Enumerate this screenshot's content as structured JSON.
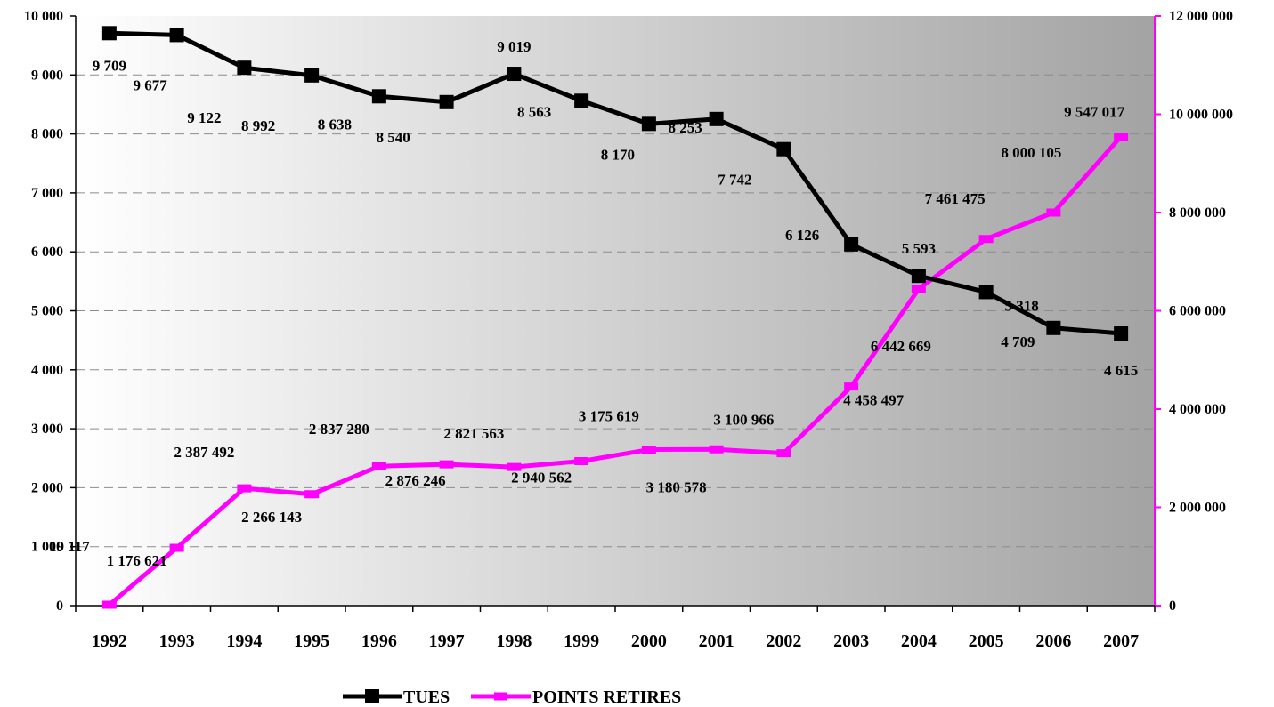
{
  "chart_data": {
    "type": "line",
    "categories": [
      "1992",
      "1993",
      "1994",
      "1995",
      "1996",
      "1997",
      "1998",
      "1999",
      "2000",
      "2001",
      "2002",
      "2003",
      "2004",
      "2005",
      "2006",
      "2007"
    ],
    "series": [
      {
        "name": "TUES",
        "axis": "left",
        "color": "#000000",
        "marker": "square",
        "values": [
          9709,
          9677,
          9122,
          8992,
          8638,
          8540,
          9019,
          8563,
          8170,
          8253,
          7742,
          6126,
          5593,
          5318,
          4709,
          4615
        ],
        "labels": [
          "9 709",
          "9 677",
          "9 122",
          "8 992",
          "8 638",
          "8 540",
          "9 019",
          "8 563",
          "8 170",
          "8 253",
          "7 742",
          "6 126",
          "5 593",
          "5 318",
          "4 709",
          "4 615"
        ]
      },
      {
        "name": "POINTS RETIRES",
        "axis": "right",
        "color": "#ff00ff",
        "marker": "dash",
        "values": [
          19117,
          1176621,
          2387492,
          2266143,
          2837280,
          2876246,
          2821563,
          2940562,
          3175619,
          3180578,
          3100966,
          4458497,
          6442669,
          7461475,
          8000105,
          9547017
        ],
        "labels": [
          "19 117",
          "1 176 621",
          "2 387 492",
          "2 266 143",
          "2 837 280",
          "2 876 246",
          "2 821 563",
          "2 940 562",
          "3 175 619",
          "3 180 578",
          "3 100 966",
          "4 458 497",
          "6 442 669",
          "7 461 475",
          "8 000 105",
          "9 547 017"
        ]
      }
    ],
    "left_axis": {
      "ylim": [
        0,
        10000
      ],
      "ticks": [
        0,
        1000,
        2000,
        3000,
        4000,
        5000,
        6000,
        7000,
        8000,
        9000,
        10000
      ],
      "tick_labels": [
        "0",
        "1 000",
        "2 000",
        "3 000",
        "4 000",
        "5 000",
        "6 000",
        "7 000",
        "8 000",
        "9 000",
        "10 000"
      ]
    },
    "right_axis": {
      "ylim": [
        0,
        12000000
      ],
      "color": "#ff00ff",
      "ticks": [
        0,
        2000000,
        4000000,
        6000000,
        8000000,
        10000000,
        12000000
      ],
      "tick_labels": [
        "0",
        "2 000 000",
        "4 000 000",
        "6 000 000",
        "8 000 000",
        "10 000 000",
        "12 000 000"
      ]
    },
    "grid": true,
    "legend_position": "bottom",
    "background": "gradient-gray"
  }
}
